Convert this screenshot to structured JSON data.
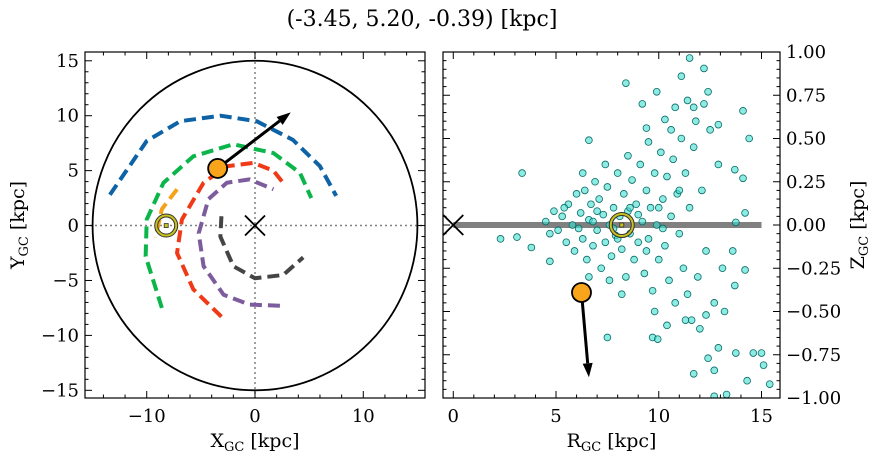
{
  "title": "(-3.45, 5.20, -0.39) [kpc]",
  "chart_data": [
    {
      "type": "line",
      "panel": "left",
      "xlabel": "X",
      "xlabel_sub": "GC",
      "xlabel_unit": " [kpc]",
      "ylabel": "Y",
      "ylabel_sub": "GC",
      "ylabel_unit": " [kpc]",
      "xlim": [
        -15.7,
        15.7
      ],
      "ylim": [
        -15.7,
        15.8
      ],
      "xticks": [
        -10,
        0,
        10
      ],
      "xtick_labels": [
        "−10",
        "0",
        "10"
      ],
      "yticks": [
        15,
        10,
        5,
        0,
        -5,
        -10,
        -15
      ],
      "ytick_labels": [
        "15",
        "10",
        "5",
        "0",
        "−5",
        "−10",
        "−15"
      ],
      "boundary_circle_radius": 15,
      "galactic_center": [
        0,
        0
      ],
      "sun": [
        -8.2,
        0
      ],
      "star": [
        -3.45,
        5.2
      ],
      "velocity_arrow_to": [
        3.3,
        10.3
      ],
      "colors": {
        "star": "#f8a51b",
        "sun_ring": "#c8c21e",
        "guide": "#808080"
      },
      "arms": [
        {
          "color": "#0e62a6",
          "points": [
            [
              -13.4,
              2.8
            ],
            [
              -10.0,
              7.7
            ],
            [
              -6.9,
              9.5
            ],
            [
              -3.2,
              10.0
            ],
            [
              0.15,
              9.5
            ],
            [
              3.5,
              7.8
            ],
            [
              6.0,
              5.4
            ],
            [
              7.5,
              2.7
            ]
          ]
        },
        {
          "color": "#0bb54a",
          "points": [
            [
              -8.6,
              -7.5
            ],
            [
              -10.1,
              -2.8
            ],
            [
              -10.0,
              0.55
            ],
            [
              -8.45,
              3.9
            ],
            [
              -5.7,
              6.3
            ],
            [
              -2.0,
              7.4
            ],
            [
              1.7,
              6.6
            ],
            [
              4.15,
              4.8
            ],
            [
              5.2,
              2.5
            ]
          ]
        },
        {
          "color": "#f5a21a",
          "points": [
            [
              -7.2,
              3.3
            ],
            [
              -8.6,
              1.5
            ],
            [
              -9.2,
              -1.1
            ]
          ]
        },
        {
          "color": "#f03a17",
          "points": [
            [
              -3.1,
              -8.3
            ],
            [
              -5.7,
              -5.8
            ],
            [
              -7.2,
              -2.5
            ],
            [
              -6.75,
              0.55
            ],
            [
              -4.75,
              3.9
            ],
            [
              -2.6,
              5.4
            ],
            [
              -0.15,
              5.7
            ],
            [
              1.7,
              5.0
            ],
            [
              2.75,
              3.7
            ]
          ]
        },
        {
          "color": "#7d5c9e",
          "points": [
            [
              2.3,
              -7.3
            ],
            [
              -0.5,
              -7.2
            ],
            [
              -2.9,
              -6.3
            ],
            [
              -4.75,
              -3.7
            ],
            [
              -5.2,
              -0.7
            ],
            [
              -4.3,
              2.4
            ],
            [
              -2.6,
              3.9
            ],
            [
              -0.5,
              4.2
            ],
            [
              1.7,
              3.3
            ]
          ]
        },
        {
          "color": "#454545",
          "points": [
            [
              -3.1,
              0.85
            ],
            [
              -3.2,
              -1.0
            ],
            [
              -2.0,
              -3.7
            ],
            [
              0,
              -4.8
            ],
            [
              2.6,
              -4.5
            ],
            [
              4.45,
              -2.9
            ]
          ]
        }
      ]
    },
    {
      "type": "scatter",
      "panel": "right",
      "xlabel": "R",
      "xlabel_sub": "GC",
      "xlabel_unit": " [kpc]",
      "ylabel": "Z",
      "ylabel_sub": "GC",
      "ylabel_unit": " [kpc]",
      "xlim": [
        -0.5,
        15.9
      ],
      "ylim": [
        -1.0,
        1.0
      ],
      "xticks": [
        0,
        5,
        10,
        15
      ],
      "xtick_labels": [
        "0",
        "5",
        "10",
        "15"
      ],
      "yticks": [
        1.0,
        0.75,
        0.5,
        0.25,
        0,
        -0.25,
        -0.5,
        -0.75,
        -1.0
      ],
      "ytick_labels": [
        "1.00",
        "0.75",
        "0.50",
        "0.25",
        "0.00",
        "−0.25",
        "−0.50",
        "−0.75",
        "−1.00"
      ],
      "plane_line": {
        "x": [
          0,
          15
        ],
        "z": 0,
        "color": "#808080"
      },
      "galactic_center": [
        0,
        0
      ],
      "sun": [
        8.2,
        0
      ],
      "star": [
        6.24,
        -0.39
      ],
      "velocity_arrow_to": [
        6.6,
        -0.88
      ],
      "colors": {
        "points": "#40e0d0",
        "point_edge": "#0a6b66",
        "star": "#f8a51b"
      },
      "points": [
        [
          11.5,
          0.965
        ],
        [
          12.2,
          0.905
        ],
        [
          11.1,
          0.86
        ],
        [
          8.4,
          0.82
        ],
        [
          9.9,
          0.77
        ],
        [
          12.4,
          0.77
        ],
        [
          9.2,
          0.7
        ],
        [
          11.4,
          0.72
        ],
        [
          10.8,
          0.68
        ],
        [
          11.7,
          0.68
        ],
        [
          10.3,
          0.61
        ],
        [
          14.1,
          0.66
        ],
        [
          9.4,
          0.56
        ],
        [
          12.9,
          0.58
        ],
        [
          6.6,
          0.49
        ],
        [
          14.4,
          0.5
        ],
        [
          3.35,
          0.3
        ],
        [
          2.3,
          -0.08
        ],
        [
          3.1,
          -0.07
        ],
        [
          3.8,
          -0.13
        ],
        [
          4.7,
          -0.21
        ],
        [
          7.5,
          -0.65
        ],
        [
          9.7,
          -0.65
        ],
        [
          9.95,
          -0.66
        ],
        [
          11.7,
          -0.86
        ],
        [
          12.4,
          -0.77
        ],
        [
          12.9,
          -0.71
        ],
        [
          13.75,
          -0.74
        ],
        [
          14.6,
          -0.74
        ],
        [
          15.0,
          -0.74
        ],
        [
          15.1,
          -0.81
        ],
        [
          14.3,
          -0.9
        ],
        [
          15.4,
          -0.92
        ],
        [
          12.7,
          -0.84
        ],
        [
          13.3,
          -0.98
        ],
        [
          12.7,
          -0.99
        ],
        [
          11.3,
          -0.55
        ],
        [
          12.3,
          -0.52
        ],
        [
          13.2,
          -0.5
        ],
        [
          13.7,
          -0.35
        ],
        [
          14.2,
          -0.26
        ],
        [
          13.6,
          -0.15
        ],
        [
          14.2,
          0.07
        ],
        [
          13.75,
          0.015
        ],
        [
          14.1,
          0.27
        ],
        [
          13.7,
          0.32
        ],
        [
          4.5,
          0.02
        ],
        [
          4.7,
          -0.05
        ],
        [
          4.9,
          0.08
        ],
        [
          5.1,
          -0.03
        ],
        [
          5.3,
          0.05
        ],
        [
          5.5,
          -0.1
        ],
        [
          5.6,
          0.12
        ],
        [
          5.8,
          0.0
        ],
        [
          5.9,
          -0.15
        ],
        [
          6.0,
          0.18
        ],
        [
          6.2,
          0.07
        ],
        [
          6.3,
          -0.08
        ],
        [
          6.4,
          0.2
        ],
        [
          6.5,
          -0.2
        ],
        [
          6.6,
          0.03
        ],
        [
          6.7,
          0.12
        ],
        [
          6.8,
          -0.12
        ],
        [
          6.9,
          0.25
        ],
        [
          7.0,
          -0.03
        ],
        [
          7.1,
          0.15
        ],
        [
          7.2,
          -0.25
        ],
        [
          7.3,
          0.06
        ],
        [
          7.4,
          -0.1
        ],
        [
          7.5,
          0.22
        ],
        [
          7.6,
          0.0
        ],
        [
          7.7,
          -0.18
        ],
        [
          7.8,
          0.1
        ],
        [
          7.9,
          -0.06
        ],
        [
          8.0,
          0.3
        ],
        [
          8.1,
          0.05
        ],
        [
          8.2,
          -0.14
        ],
        [
          8.3,
          0.18
        ],
        [
          8.4,
          -0.3
        ],
        [
          8.5,
          0.08
        ],
        [
          8.6,
          -0.05
        ],
        [
          8.7,
          0.26
        ],
        [
          8.8,
          -0.2
        ],
        [
          8.9,
          0.12
        ],
        [
          9.0,
          -0.1
        ],
        [
          9.1,
          0.35
        ],
        [
          9.2,
          0.02
        ],
        [
          9.3,
          -0.28
        ],
        [
          9.4,
          0.2
        ],
        [
          9.5,
          -0.08
        ],
        [
          9.6,
          0.1
        ],
        [
          9.7,
          -0.38
        ],
        [
          9.8,
          0.3
        ],
        [
          9.9,
          0.0
        ],
        [
          10.0,
          -0.2
        ],
        [
          10.1,
          0.42
        ],
        [
          10.2,
          0.15
        ],
        [
          10.3,
          -0.12
        ],
        [
          10.4,
          0.28
        ],
        [
          10.5,
          -0.32
        ],
        [
          10.6,
          0.05
        ],
        [
          10.7,
          0.38
        ],
        [
          10.8,
          -0.45
        ],
        [
          10.9,
          0.18
        ],
        [
          11.0,
          -0.05
        ],
        [
          11.1,
          0.5
        ],
        [
          11.2,
          -0.25
        ],
        [
          11.3,
          0.3
        ],
        [
          11.4,
          -0.4
        ],
        [
          11.5,
          0.1
        ],
        [
          11.7,
          0.45
        ],
        [
          11.9,
          -0.3
        ],
        [
          12.1,
          0.2
        ],
        [
          12.3,
          -0.15
        ],
        [
          12.5,
          0.55
        ],
        [
          12.7,
          -0.45
        ],
        [
          12.9,
          0.35
        ],
        [
          13.1,
          -0.25
        ],
        [
          6.1,
          -0.02
        ],
        [
          7.0,
          0.08
        ],
        [
          7.8,
          -0.02
        ],
        [
          8.6,
          0.1
        ],
        [
          9.4,
          -0.15
        ],
        [
          10.2,
          -0.02
        ],
        [
          5.4,
          0.1
        ],
        [
          6.8,
          0.02
        ],
        [
          8.0,
          -0.08
        ],
        [
          9.0,
          0.06
        ],
        [
          10.0,
          0.1
        ],
        [
          11.0,
          0.2
        ],
        [
          9.5,
          0.48
        ],
        [
          10.6,
          0.55
        ],
        [
          11.8,
          0.6
        ],
        [
          12.2,
          0.7
        ],
        [
          9.8,
          -0.5
        ],
        [
          10.4,
          -0.58
        ],
        [
          11.6,
          -0.55
        ],
        [
          12.0,
          -0.6
        ],
        [
          8.5,
          0.4
        ],
        [
          8.2,
          -0.4
        ],
        [
          7.4,
          0.35
        ],
        [
          7.6,
          -0.32
        ],
        [
          6.3,
          0.3
        ],
        [
          6.6,
          -0.3
        ]
      ]
    }
  ]
}
